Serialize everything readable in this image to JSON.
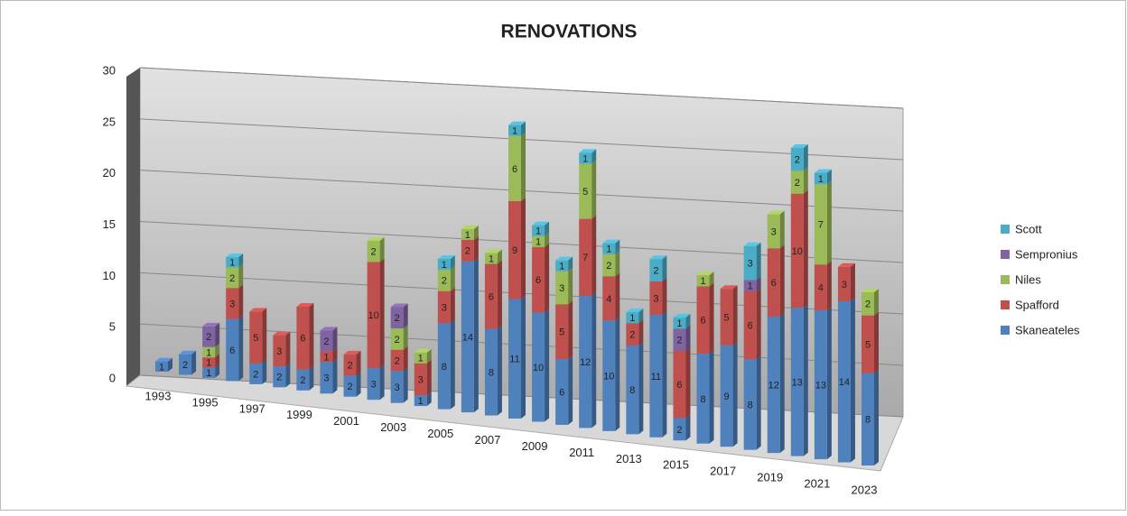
{
  "chart_data": {
    "type": "bar3d_stacked",
    "title": "RENOVATIONS",
    "categories": [
      "1993",
      null,
      "1995",
      null,
      "1997",
      null,
      "1999",
      null,
      "2001",
      null,
      "2003",
      null,
      "2005",
      null,
      "2007",
      null,
      "2009",
      null,
      "2011",
      null,
      "2013",
      null,
      "2015",
      null,
      "2017",
      null,
      "2019",
      null,
      "2021",
      null,
      "2023"
    ],
    "series": [
      {
        "name": "Skaneateles",
        "color": "#4f81bd",
        "values": [
          1,
          2,
          1,
          6,
          2,
          2,
          2,
          3,
          2,
          3,
          3,
          1,
          8,
          14,
          8,
          11,
          10,
          6,
          12,
          10,
          8,
          11,
          2,
          8,
          9,
          8,
          12,
          13,
          13,
          14,
          8
        ]
      },
      {
        "name": "Spafford",
        "color": "#c0504d",
        "values": [
          null,
          null,
          1,
          3,
          5,
          3,
          6,
          1,
          2,
          10,
          2,
          3,
          3,
          2,
          6,
          9,
          6,
          5,
          7,
          4,
          2,
          3,
          6,
          6,
          5,
          6,
          6,
          10,
          4,
          3,
          5
        ]
      },
      {
        "name": "Niles",
        "color": "#9bbb59",
        "values": [
          null,
          null,
          1,
          2,
          null,
          null,
          null,
          null,
          null,
          2,
          2,
          1,
          2,
          1,
          1,
          6,
          1,
          3,
          5,
          2,
          null,
          null,
          null,
          1,
          null,
          null,
          3,
          2,
          7,
          null,
          2
        ]
      },
      {
        "name": "Sempronius",
        "color": "#8064a2",
        "values": [
          null,
          null,
          2,
          null,
          null,
          null,
          null,
          2,
          null,
          null,
          2,
          null,
          null,
          null,
          null,
          null,
          null,
          null,
          null,
          null,
          null,
          null,
          2,
          null,
          null,
          1,
          null,
          null,
          null,
          null,
          null
        ]
      },
      {
        "name": "Scott",
        "color": "#4bacc6",
        "values": [
          null,
          null,
          null,
          1,
          null,
          null,
          null,
          null,
          null,
          null,
          null,
          null,
          1,
          null,
          null,
          1,
          1,
          1,
          1,
          1,
          1,
          2,
          1,
          null,
          null,
          3,
          null,
          2,
          1,
          null,
          null
        ]
      }
    ],
    "ylim": [
      0,
      30
    ],
    "yticks": [
      0,
      5,
      10,
      15,
      20,
      25,
      30
    ],
    "grid": true,
    "legend": "right"
  }
}
